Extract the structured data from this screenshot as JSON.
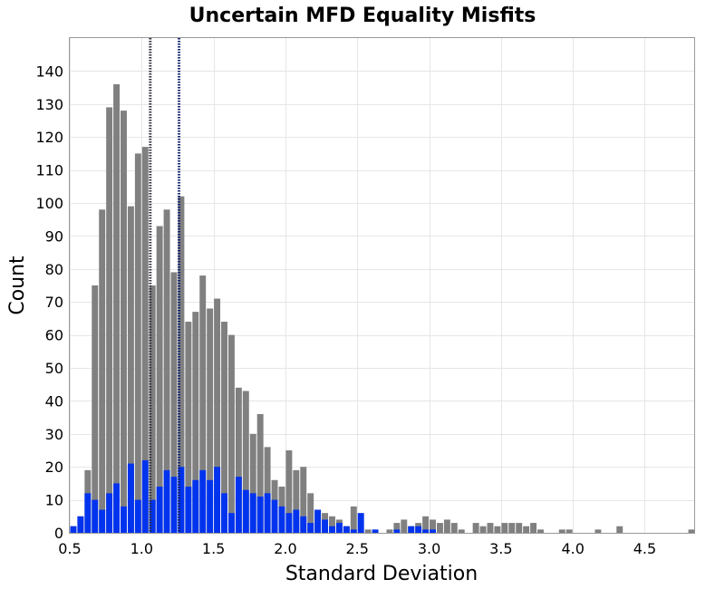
{
  "chart_data": {
    "type": "bar",
    "title": "Uncertain MFD Equality Misfits",
    "xlabel": "Standard Deviation",
    "ylabel": "Count",
    "xlim": [
      0.5,
      4.85
    ],
    "ylim": [
      0,
      150
    ],
    "xticks": [
      0.5,
      1.0,
      1.5,
      2.0,
      2.5,
      3.0,
      3.5,
      4.0,
      4.5
    ],
    "xtick_labels": [
      "0.5",
      "1.0",
      "1.5",
      "2.0",
      "2.5",
      "3.0",
      "3.5",
      "4.0",
      "4.5"
    ],
    "yticks": [
      0,
      10,
      20,
      30,
      40,
      50,
      60,
      70,
      80,
      90,
      100,
      110,
      120,
      130,
      140
    ],
    "ytick_labels": [
      "0",
      "10",
      "20",
      "30",
      "40",
      "50",
      "60",
      "70",
      "80",
      "90",
      "100",
      "110",
      "120",
      "130",
      "140"
    ],
    "grid": true,
    "bin_width": 0.05,
    "series": [
      {
        "color": "#808080",
        "bins": [
          [
            0.5,
            2
          ],
          [
            0.55,
            5
          ],
          [
            0.6,
            19
          ],
          [
            0.65,
            75
          ],
          [
            0.7,
            98
          ],
          [
            0.75,
            129
          ],
          [
            0.8,
            136
          ],
          [
            0.85,
            128
          ],
          [
            0.9,
            99
          ],
          [
            0.95,
            115
          ],
          [
            1.0,
            117
          ],
          [
            1.05,
            75
          ],
          [
            1.1,
            93
          ],
          [
            1.15,
            98
          ],
          [
            1.2,
            79
          ],
          [
            1.25,
            102
          ],
          [
            1.3,
            64
          ],
          [
            1.35,
            67
          ],
          [
            1.4,
            78
          ],
          [
            1.45,
            68
          ],
          [
            1.5,
            71
          ],
          [
            1.55,
            64
          ],
          [
            1.6,
            60
          ],
          [
            1.65,
            44
          ],
          [
            1.7,
            43
          ],
          [
            1.75,
            30
          ],
          [
            1.8,
            36
          ],
          [
            1.85,
            26
          ],
          [
            1.9,
            16
          ],
          [
            1.95,
            14
          ],
          [
            2.0,
            25
          ],
          [
            2.05,
            19
          ],
          [
            2.1,
            20
          ],
          [
            2.15,
            12
          ],
          [
            2.2,
            7
          ],
          [
            2.25,
            6
          ],
          [
            2.3,
            5
          ],
          [
            2.35,
            4
          ],
          [
            2.4,
            2
          ],
          [
            2.45,
            8
          ],
          [
            2.55,
            1
          ],
          [
            2.7,
            1
          ],
          [
            2.75,
            3
          ],
          [
            2.8,
            4
          ],
          [
            2.85,
            2
          ],
          [
            2.9,
            3
          ],
          [
            2.95,
            5
          ],
          [
            3.0,
            4
          ],
          [
            3.05,
            3
          ],
          [
            3.1,
            4
          ],
          [
            3.15,
            3
          ],
          [
            3.2,
            1
          ],
          [
            3.3,
            3
          ],
          [
            3.35,
            2
          ],
          [
            3.4,
            3
          ],
          [
            3.45,
            2
          ],
          [
            3.5,
            3
          ],
          [
            3.55,
            3
          ],
          [
            3.6,
            3
          ],
          [
            3.65,
            2
          ],
          [
            3.7,
            3
          ],
          [
            3.75,
            1
          ],
          [
            3.9,
            1
          ],
          [
            3.95,
            1
          ],
          [
            4.15,
            1
          ],
          [
            4.3,
            2
          ],
          [
            4.8,
            1
          ]
        ]
      },
      {
        "color": "#0033ee",
        "bins": [
          [
            0.5,
            2
          ],
          [
            0.55,
            5
          ],
          [
            0.6,
            12
          ],
          [
            0.65,
            10
          ],
          [
            0.7,
            7
          ],
          [
            0.75,
            12
          ],
          [
            0.8,
            15
          ],
          [
            0.85,
            8
          ],
          [
            0.9,
            21
          ],
          [
            0.95,
            10
          ],
          [
            1.0,
            22
          ],
          [
            1.05,
            10
          ],
          [
            1.1,
            14
          ],
          [
            1.15,
            19
          ],
          [
            1.2,
            17
          ],
          [
            1.25,
            20
          ],
          [
            1.3,
            14
          ],
          [
            1.35,
            16
          ],
          [
            1.4,
            19
          ],
          [
            1.45,
            16
          ],
          [
            1.5,
            20
          ],
          [
            1.55,
            12
          ],
          [
            1.6,
            6
          ],
          [
            1.65,
            17
          ],
          [
            1.7,
            13
          ],
          [
            1.75,
            12
          ],
          [
            1.8,
            11
          ],
          [
            1.85,
            12
          ],
          [
            1.9,
            10
          ],
          [
            1.95,
            8
          ],
          [
            2.0,
            6
          ],
          [
            2.05,
            7
          ],
          [
            2.1,
            5
          ],
          [
            2.15,
            3
          ],
          [
            2.2,
            7
          ],
          [
            2.25,
            4
          ],
          [
            2.3,
            2
          ],
          [
            2.35,
            3
          ],
          [
            2.4,
            2
          ],
          [
            2.45,
            1
          ],
          [
            2.5,
            6
          ],
          [
            2.6,
            1
          ],
          [
            2.75,
            1
          ],
          [
            2.85,
            2
          ],
          [
            2.9,
            2
          ],
          [
            2.95,
            1
          ],
          [
            3.0,
            1
          ]
        ]
      }
    ],
    "vlines": [
      {
        "x": 1.06,
        "color": "#333344",
        "style": "dotted"
      },
      {
        "x": 1.26,
        "color": "#11226b",
        "style": "dotted"
      }
    ]
  }
}
